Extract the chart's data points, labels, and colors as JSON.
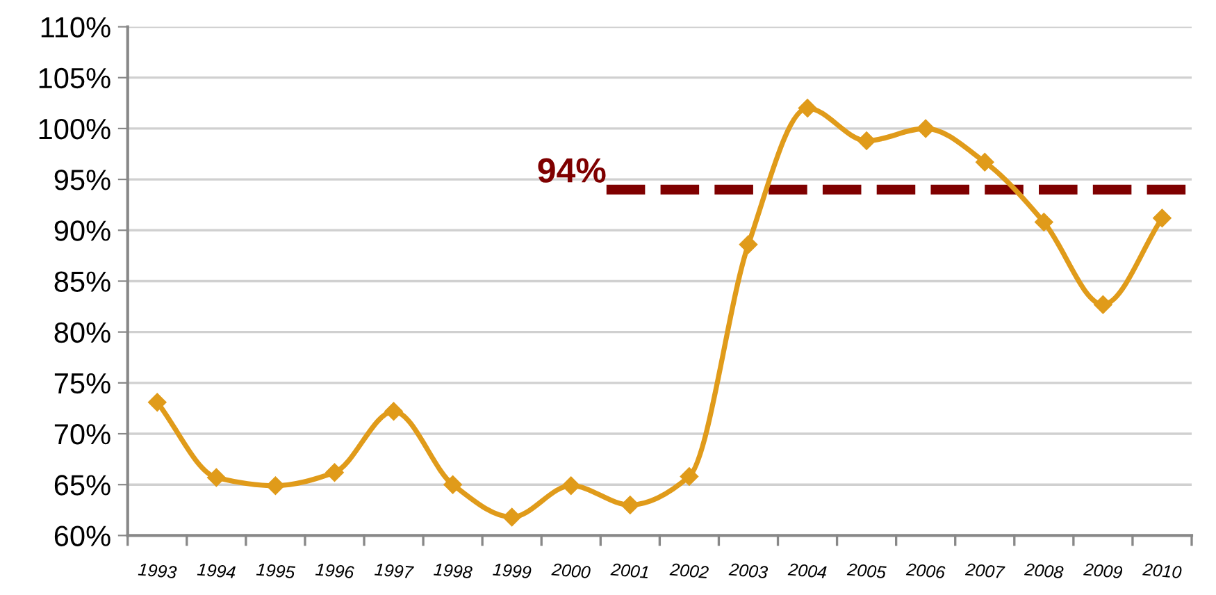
{
  "chart_data": {
    "type": "line",
    "categories": [
      "1993",
      "1994",
      "1995",
      "1996",
      "1997",
      "1998",
      "1999",
      "2000",
      "2001",
      "2002",
      "2003",
      "2004",
      "2005",
      "2006",
      "2007",
      "2008",
      "2009",
      "2010"
    ],
    "series": [
      {
        "color": "#e09b1a",
        "values": [
          73.1,
          65.7,
          64.9,
          66.2,
          72.2,
          65.0,
          61.8,
          64.9,
          63.0,
          65.8,
          88.6,
          102.0,
          98.8,
          100.0,
          96.7,
          90.8,
          82.7,
          91.2
        ]
      }
    ],
    "ylim": [
      60,
      110
    ],
    "yticks": [
      {
        "value": 60,
        "label": "60%"
      },
      {
        "value": 65,
        "label": "65%"
      },
      {
        "value": 70,
        "label": "70%"
      },
      {
        "value": 75,
        "label": "75%"
      },
      {
        "value": 80,
        "label": "80%"
      },
      {
        "value": 85,
        "label": "85%"
      },
      {
        "value": 90,
        "label": "90%"
      },
      {
        "value": 95,
        "label": "95%"
      },
      {
        "value": 100,
        "label": "100%"
      },
      {
        "value": 105,
        "label": "105%"
      },
      {
        "value": 110,
        "label": "110%"
      }
    ],
    "ref_lines": [
      {
        "axis": "y",
        "value": 94,
        "label": "94%",
        "color": "#7f0000",
        "line_style": "dashed"
      }
    ],
    "grid": "y",
    "marker": "diamond",
    "line_style": "solid"
  }
}
